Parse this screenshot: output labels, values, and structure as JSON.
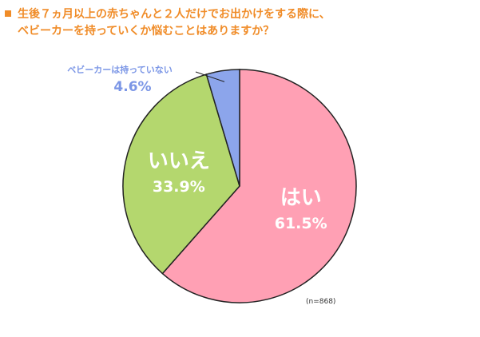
{
  "title": {
    "marker": "■",
    "line1": "生後７ヵ月以上の赤ちゃんと２人だけでお出かけをする際に、",
    "line2": "ベビーカーを持っていくか悩むことはありますか？"
  },
  "note": "(n=868)",
  "colors": {
    "title": "#f08c28",
    "yes": "#ffa0b4",
    "no": "#b4d76e",
    "none": "#8ca5eb",
    "callout_text": "#7b96e6"
  },
  "chart_data": {
    "type": "pie",
    "title": "生後７ヵ月以上の赤ちゃんと２人だけでお出かけをする際に、ベビーカーを持っていくか悩むことはありますか？",
    "sample_size": "(n=868)",
    "slices": [
      {
        "label": "はい",
        "value": 61.5,
        "value_label": "61.5%",
        "color": "#ffa0b4"
      },
      {
        "label": "いいえ",
        "value": 33.9,
        "value_label": "33.9%",
        "color": "#b4d76e"
      },
      {
        "label": "ベビーカーは持っていない",
        "value": 4.6,
        "value_label": "4.6%",
        "color": "#8ca5eb"
      }
    ]
  }
}
